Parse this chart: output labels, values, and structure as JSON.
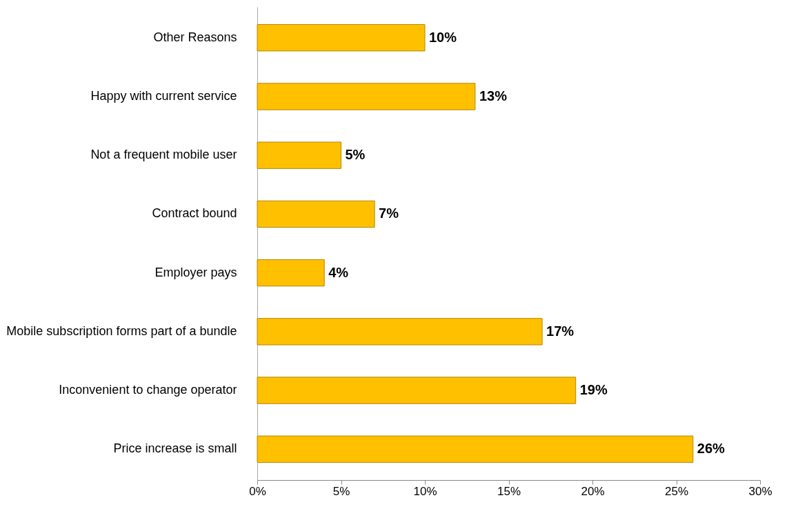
{
  "chart_data": {
    "type": "bar",
    "orientation": "horizontal",
    "categories": [
      "Other Reasons",
      "Happy with current service",
      "Not a frequent mobile user",
      "Contract bound",
      "Employer pays",
      "Mobile subscription forms part of a bundle",
      "Inconvenient to change operator",
      "Price increase is small"
    ],
    "values": [
      10,
      13,
      5,
      7,
      4,
      17,
      19,
      26
    ],
    "value_labels": [
      "10%",
      "13%",
      "5%",
      "7%",
      "4%",
      "17%",
      "19%",
      "26%"
    ],
    "color": "#ffc000",
    "xlim": [
      0,
      30
    ],
    "xticks": [
      {
        "value": 0,
        "label": "0%"
      },
      {
        "value": 5,
        "label": "5%"
      },
      {
        "value": 10,
        "label": "10%"
      },
      {
        "value": 15,
        "label": "15%"
      },
      {
        "value": 20,
        "label": "20%"
      },
      {
        "value": 25,
        "label": "25%"
      },
      {
        "value": 30,
        "label": "30%"
      }
    ],
    "grid": false
  }
}
